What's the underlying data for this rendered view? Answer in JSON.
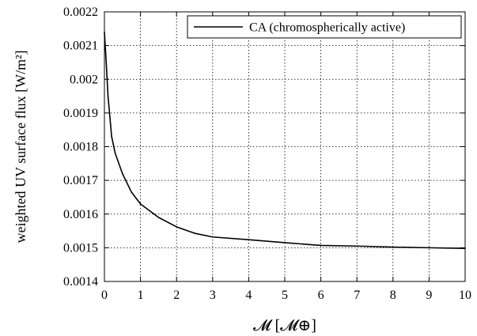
{
  "chart_data": {
    "type": "line",
    "xlabel": "𝓜 [𝓜⊕]",
    "ylabel": "weighted UV surface flux [W/m²]",
    "xlim": [
      0,
      10
    ],
    "ylim": [
      0.0014,
      0.0022
    ],
    "xticks": [
      "0",
      "1",
      "2",
      "3",
      "4",
      "5",
      "6",
      "7",
      "8",
      "9",
      "10"
    ],
    "yticks": [
      "0.0014",
      "0.0015",
      "0.0016",
      "0.0017",
      "0.0018",
      "0.0019",
      "0.002",
      "0.0021",
      "0.0022"
    ],
    "grid": true,
    "legend_position": "top-right",
    "series": [
      {
        "name": "CA (chromospherically active)",
        "color": "#000000",
        "x": [
          0.0,
          0.05,
          0.1,
          0.2,
          0.3,
          0.5,
          0.75,
          1.0,
          1.5,
          2.0,
          2.5,
          3.0,
          4.0,
          5.0,
          6.0,
          7.0,
          8.0,
          9.0,
          10.0
        ],
        "y": [
          0.00214,
          0.00205,
          0.00195,
          0.00183,
          0.00178,
          0.00172,
          0.001665,
          0.00163,
          0.00159,
          0.001562,
          0.001543,
          0.001532,
          0.001524,
          0.001515,
          0.001507,
          0.001505,
          0.001502,
          0.0015,
          0.001498
        ]
      }
    ]
  }
}
